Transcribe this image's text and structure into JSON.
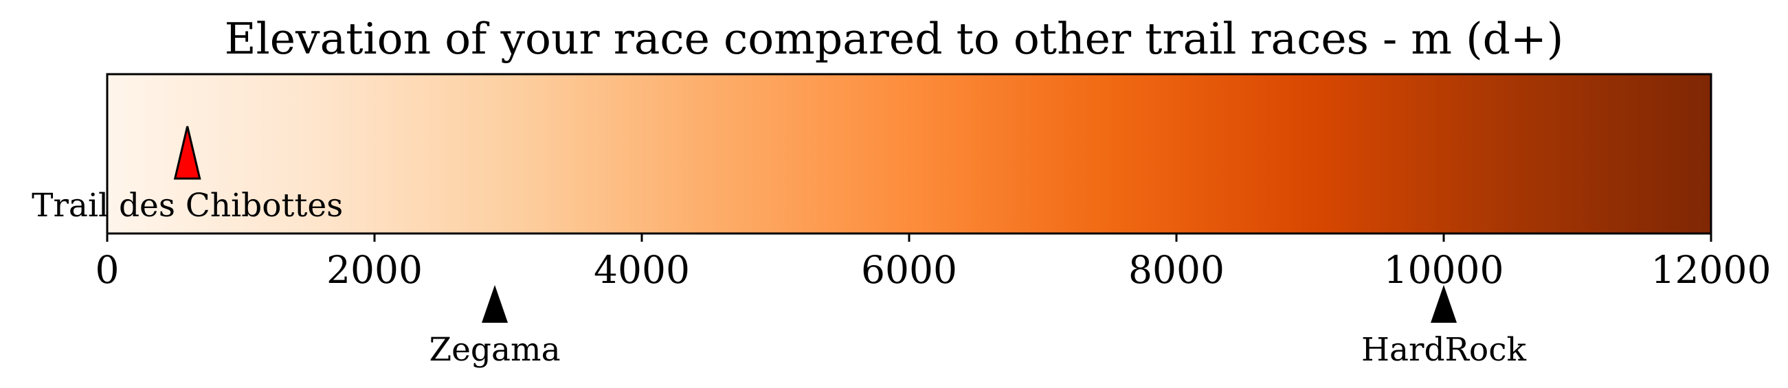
{
  "chart_data": {
    "type": "colorbar",
    "title": "Elevation of your race compared to other trail races - m (d+)",
    "colormap": [
      "#fff5eb",
      "#fee6ce",
      "#fdd0a2",
      "#fdae6b",
      "#fd8d3c",
      "#f16913",
      "#d94801",
      "#a63603",
      "#7f2704"
    ],
    "xlim": [
      0,
      12000
    ],
    "ticks": [
      0,
      2000,
      4000,
      6000,
      8000,
      10000,
      12000
    ],
    "tick_labels": [
      "0",
      "2000",
      "4000",
      "6000",
      "8000",
      "10000",
      "12000"
    ],
    "your_race": {
      "name": "Trail des Chibottes",
      "value": 600,
      "marker_color": "#ff0000"
    },
    "reference_races": [
      {
        "name": "Zegama",
        "value": 2900,
        "marker_color": "#000000"
      },
      {
        "name": "HardRock",
        "value": 10000,
        "marker_color": "#000000"
      }
    ]
  }
}
